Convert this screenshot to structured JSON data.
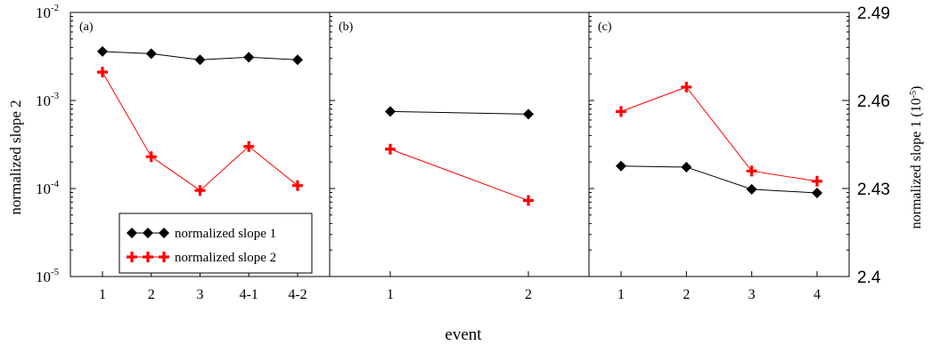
{
  "xlabel": "event",
  "legend_labels": [
    "normalized slope 1",
    "normalized slope 2"
  ],
  "colors": {
    "slope1": "#000000",
    "slope2": "#ff0000"
  },
  "left_axis": {
    "label": "normalized slope 2",
    "scale": "log",
    "range": [
      1e-05,
      0.01
    ],
    "ticks": [
      {
        "value": 0.01,
        "base": "10",
        "exp": "-2"
      },
      {
        "value": 0.001,
        "base": "10",
        "exp": "-3"
      },
      {
        "value": 0.0001,
        "base": "10",
        "exp": "-4"
      },
      {
        "value": 1e-05,
        "base": "10",
        "exp": "-5"
      }
    ]
  },
  "right_axis": {
    "label": "normalized slope 1 (10",
    "label_exp": "-5",
    "label_suffix": ")",
    "scale": "linear",
    "range": [
      2.4,
      2.49
    ],
    "ticks": [
      "2.49",
      "2.46",
      "2.43",
      "2.4"
    ]
  },
  "chart_data": [
    {
      "type": "line",
      "panel_label": "(a)",
      "categories": [
        "1",
        "2",
        "3",
        "4-1",
        "4-2"
      ],
      "show_legend": true,
      "legend_position": "bottom-right",
      "series": [
        {
          "name": "normalized slope 1",
          "marker": "diamond",
          "values": [
            0.0036,
            0.0034,
            0.0029,
            0.0031,
            0.0029
          ]
        },
        {
          "name": "normalized slope 2",
          "marker": "plus",
          "values": [
            0.0021,
            0.00023,
            9.5e-05,
            0.0003,
            0.000108
          ]
        }
      ]
    },
    {
      "type": "line",
      "panel_label": "(b)",
      "categories": [
        "1",
        "2"
      ],
      "show_legend": false,
      "series": [
        {
          "name": "normalized slope 1",
          "marker": "diamond",
          "values": [
            0.00075,
            0.0007
          ]
        },
        {
          "name": "normalized slope 2",
          "marker": "plus",
          "values": [
            0.00028,
            7.3e-05
          ]
        }
      ]
    },
    {
      "type": "line",
      "panel_label": "(c)",
      "categories": [
        "1",
        "2",
        "3",
        "4"
      ],
      "show_legend": false,
      "series": [
        {
          "name": "normalized slope 1",
          "marker": "diamond",
          "values": [
            0.00018,
            0.000175,
            9.8e-05,
            8.9e-05
          ]
        },
        {
          "name": "normalized slope 2",
          "marker": "plus",
          "values": [
            0.00075,
            0.00142,
            0.000158,
            0.000121
          ]
        }
      ]
    }
  ]
}
